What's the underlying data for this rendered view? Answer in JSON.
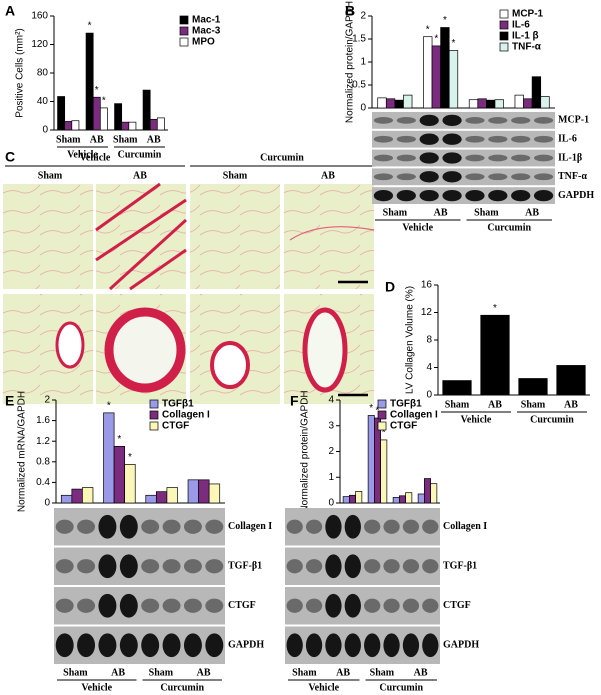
{
  "chart_data": [
    {
      "type": "bar",
      "panel": "A",
      "y_label": "Positive Cells (mm²)",
      "ylim": [
        0,
        160
      ],
      "yticks": [
        0,
        40,
        80,
        120,
        160
      ],
      "categories": [
        "Sham",
        "AB",
        "Sham",
        "AB"
      ],
      "group_labels": [
        "Vehicle",
        "Curcumin"
      ],
      "series": [
        {
          "name": "Mac-1",
          "color": "#000000",
          "values": [
            47,
            136,
            37,
            56
          ],
          "stars": [
            null,
            "*",
            null,
            null
          ]
        },
        {
          "name": "Mac-3",
          "color": "#7b2c7e",
          "values": [
            12,
            46,
            11,
            15
          ],
          "stars": [
            null,
            "*",
            null,
            null
          ]
        },
        {
          "name": "MPO",
          "color": "#ffffff",
          "values": [
            13,
            31,
            11,
            17
          ],
          "stars": [
            null,
            "*",
            null,
            null
          ]
        }
      ]
    },
    {
      "type": "bar",
      "panel": "B",
      "y_label": "Normalized protein/GAPDH",
      "ylim": [
        0,
        2
      ],
      "yticks": [
        0,
        0.5,
        1,
        1.5,
        2
      ],
      "categories": [
        "Sham",
        "AB",
        "Sham",
        "AB"
      ],
      "group_labels": [
        "Vehicle",
        "Curcumin"
      ],
      "blot_labels": [
        "MCP-1",
        "IL-6",
        "IL-1β",
        "TNF-α",
        "GAPDH"
      ],
      "series": [
        {
          "name": "MCP-1",
          "color": "#ffffff",
          "values": [
            0.22,
            1.55,
            0.18,
            0.28
          ],
          "stars": [
            null,
            "*",
            null,
            null
          ]
        },
        {
          "name": "IL-6",
          "color": "#7b2c7e",
          "values": [
            0.2,
            1.35,
            0.2,
            0.2
          ],
          "stars": [
            null,
            "*",
            null,
            null
          ]
        },
        {
          "name": "IL-1 β",
          "color": "#000000",
          "values": [
            0.17,
            1.75,
            0.17,
            0.68
          ],
          "stars": [
            null,
            "*",
            null,
            null
          ]
        },
        {
          "name": "TNF-α",
          "color": "#d8f2ec",
          "values": [
            0.28,
            1.25,
            0.18,
            0.25
          ],
          "stars": [
            null,
            "*",
            null,
            null
          ]
        }
      ]
    },
    {
      "type": "bar",
      "panel": "D",
      "y_label": "LV Collagen Volume (%)",
      "ylim": [
        0,
        16
      ],
      "yticks": [
        0,
        4,
        8,
        12,
        16
      ],
      "categories": [
        "Sham",
        "AB",
        "Sham",
        "AB"
      ],
      "group_labels": [
        "Vehicle",
        "Curcumin"
      ],
      "series": [
        {
          "name": null,
          "color": "#000000",
          "values": [
            2.1,
            11.6,
            2.4,
            4.3
          ],
          "stars": [
            null,
            "*",
            null,
            null
          ]
        }
      ]
    },
    {
      "type": "bar",
      "panel": "E",
      "y_label": "Normalized mRNA/GAPDH",
      "ylim": [
        0,
        2
      ],
      "yticks": [
        0,
        0.4,
        0.8,
        1.2,
        1.6,
        2
      ],
      "categories": [
        "Sham",
        "AB",
        "Sham",
        "AB"
      ],
      "group_labels": [
        "Vehicle",
        "Curcumin"
      ],
      "blot_labels": [
        "Collagen I",
        "TGF-β1",
        "CTGF",
        "GAPDH"
      ],
      "series": [
        {
          "name": "TGFβ1",
          "color": "#9a9ae8",
          "values": [
            0.15,
            1.75,
            0.15,
            0.45
          ],
          "stars": [
            null,
            "*",
            null,
            null
          ]
        },
        {
          "name": "Collagen I",
          "color": "#7b2c7e",
          "values": [
            0.27,
            1.1,
            0.22,
            0.45
          ],
          "stars": [
            null,
            "*",
            null,
            null
          ]
        },
        {
          "name": "CTGF",
          "color": "#fbf7b8",
          "values": [
            0.3,
            0.75,
            0.3,
            0.37
          ],
          "stars": [
            null,
            "*",
            null,
            null
          ]
        }
      ]
    },
    {
      "type": "bar",
      "panel": "F",
      "y_label": "Normalized protein/GAPDH",
      "ylim": [
        0,
        4
      ],
      "yticks": [
        0,
        1,
        2,
        3,
        4
      ],
      "categories": [
        "Sham",
        "AB",
        "Sham",
        "AB"
      ],
      "group_labels": [
        "Vehicle",
        "Curcumin"
      ],
      "blot_labels": [
        "Collagen I",
        "TGF-β1",
        "CTGF",
        "GAPDH"
      ],
      "series": [
        {
          "name": "TGFβ1",
          "color": "#9a9ae8",
          "values": [
            0.25,
            3.4,
            0.22,
            0.35
          ],
          "stars": [
            null,
            "*",
            null,
            null
          ]
        },
        {
          "name": "Collagen I",
          "color": "#7b2c7e",
          "values": [
            0.3,
            3.3,
            0.28,
            0.95
          ],
          "stars": [
            null,
            "*",
            null,
            null
          ]
        },
        {
          "name": "CTGF",
          "color": "#fbf7b8",
          "values": [
            0.45,
            2.45,
            0.4,
            0.75
          ],
          "stars": [
            null,
            "*",
            null,
            null
          ]
        }
      ]
    }
  ],
  "panel_c": {
    "panel": "C",
    "groups": [
      "Vehicle",
      "Curcumin"
    ],
    "columns": [
      "Sham",
      "AB",
      "Sham",
      "AB"
    ]
  }
}
